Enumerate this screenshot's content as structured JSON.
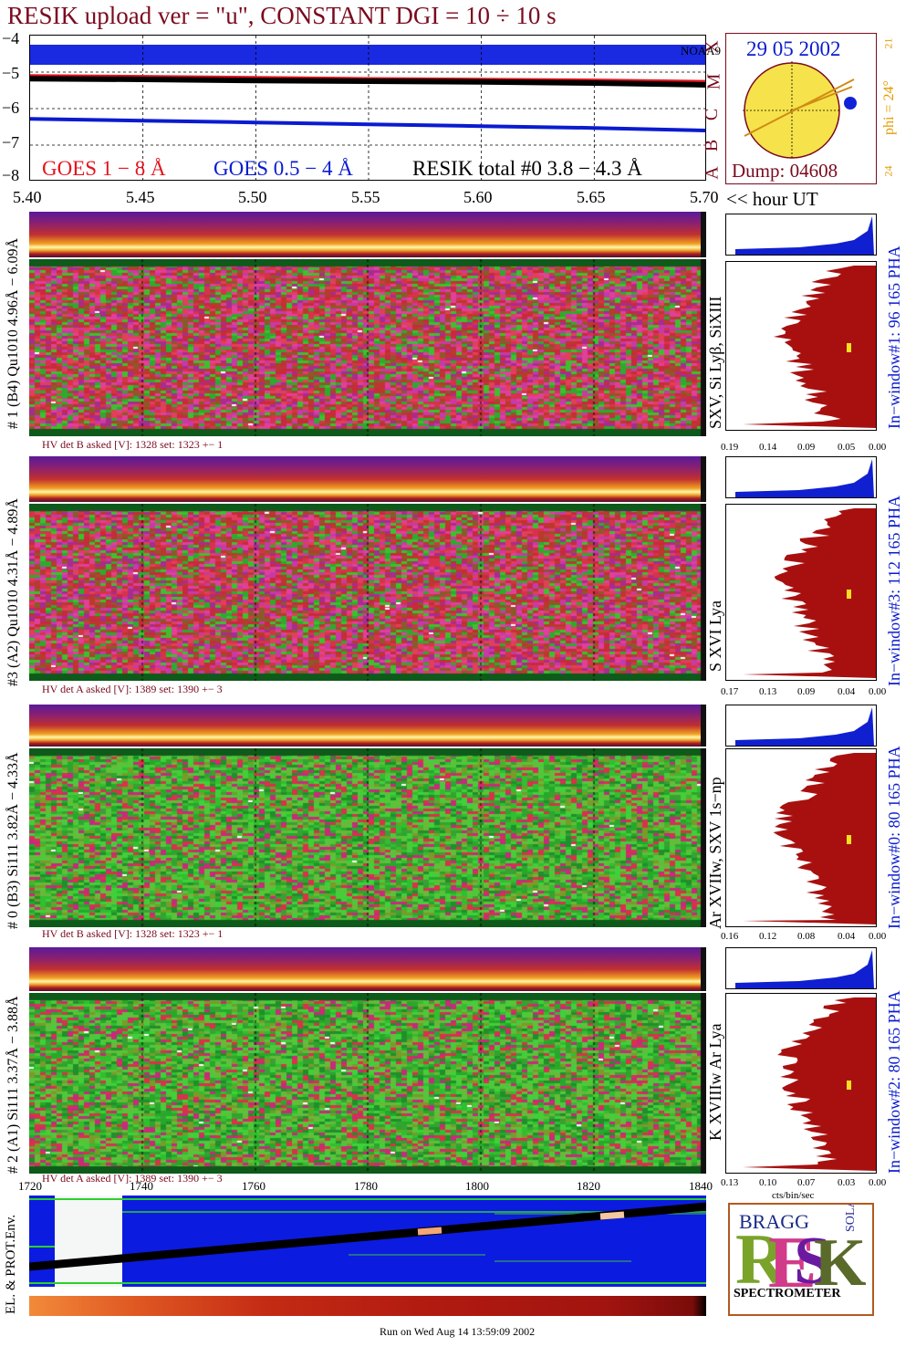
{
  "header": {
    "title": "RESIK upload ver = \"u\", CONSTANT  DGI =  10 ÷  10 s"
  },
  "goes": {
    "yticks": [
      "−4",
      "−5",
      "−6",
      "−7",
      "−8"
    ],
    "class_letters": [
      "X",
      "M",
      "C",
      "B",
      "A"
    ],
    "noaa_label": "NOAA9",
    "legend_goes1": "GOES 1 − 8 Å",
    "legend_goes2": "GOES 0.5 − 4 Å",
    "legend_resik": "RESIK total #0  3.8 − 4.3 Å"
  },
  "time_axis": {
    "ticks": [
      "5.40",
      "5.45",
      "5.50",
      "5.55",
      "5.60",
      "5.65",
      "5.70"
    ],
    "unit_label": "<< hour UT"
  },
  "sun": {
    "date": "29 05 2002",
    "dump": "Dump: 04608",
    "phi": "phi = 24°",
    "top_num": "21",
    "bottom_num": "24"
  },
  "detectors": [
    {
      "left_label": "# 1 (B4) Qu1010 4.96Å − 6.09Å",
      "line_label": "SXV, Si Lyβ, SiXIII",
      "right_label": "In−window#1:  96 165 PHA",
      "hv": "HV det B asked [V]:  1328 set:  1323 +−    1",
      "pha_ticks": [
        "0.19",
        "0.14",
        "0.09",
        "0.05",
        "0.00"
      ]
    },
    {
      "left_label": "#3 (A2) Qu1010  4.31Å − 4.89Å",
      "line_label": "S XVI Lya",
      "right_label": "In−window#3:  112 165 PHA",
      "hv": "HV det A asked [V]:  1389 set:  1390 +−    3",
      "pha_ticks": [
        "0.17",
        "0.13",
        "0.09",
        "0.04",
        "0.00"
      ]
    },
    {
      "left_label": "# 0 (B3) Si111  3.82Å − 4.33Å",
      "line_label": "Ar XVIIw,  SXV 1s−np",
      "right_label": "In−window#0:   80 165 PHA",
      "hv": "HV det B asked [V]:  1328 set:  1323 +−    1",
      "pha_ticks": [
        "0.16",
        "0.12",
        "0.08",
        "0.04",
        "0.00"
      ]
    },
    {
      "left_label": "# 2 (A1) Si111  3.37Å − 3.88Å",
      "line_label": "K XVIIIw  Ar Lya",
      "right_label": "In−window#2:   80 165 PHA",
      "hv": "HV det A asked [V]:  1389 set:  1390 +−    3",
      "pha_ticks": [
        "0.13",
        "0.10",
        "0.07",
        "0.03",
        "0.00"
      ]
    }
  ],
  "pha_unit": "cts/bin/sec",
  "bottom_axis": {
    "ticks": [
      "1720",
      "1740",
      "1760",
      "1780",
      "1800",
      "1820",
      "1840"
    ]
  },
  "env_label": "EL. & PROT.Env.",
  "logo": {
    "letters": "RESIK",
    "small": "BRAGG",
    "solar": "SOLAR",
    "caption": "SPECTROMETER"
  },
  "footer": "Run on Wed Aug 14 13:59:09 2002",
  "chart_data": [
    {
      "type": "line",
      "title": "RESIK upload ver = \"u\", CONSTANT  DGI =  10 ÷  10 s",
      "xlabel": "<< hour UT",
      "x": [
        5.4,
        5.45,
        5.5,
        5.55,
        5.6,
        5.65,
        5.7
      ],
      "xlim": [
        5.4,
        5.7
      ],
      "ylim": [
        -8,
        -4
      ],
      "series": [
        {
          "name": "GOES 1 − 8 Å",
          "color": "#e3141e",
          "values": [
            -5.12,
            -5.14,
            -5.17,
            -5.2,
            -5.22,
            -5.24,
            -5.28
          ]
        },
        {
          "name": "GOES 0.5 − 4 Å",
          "color": "#0a1bd0",
          "values": [
            -6.28,
            -6.33,
            -6.38,
            -6.43,
            -6.48,
            -6.53,
            -6.6
          ]
        },
        {
          "name": "RESIK total #0  3.8 − 4.3 Å",
          "color": "#000000",
          "values": [
            -5.18,
            -5.2,
            -5.23,
            -5.25,
            -5.27,
            -5.3,
            -5.35
          ]
        }
      ]
    }
  ]
}
